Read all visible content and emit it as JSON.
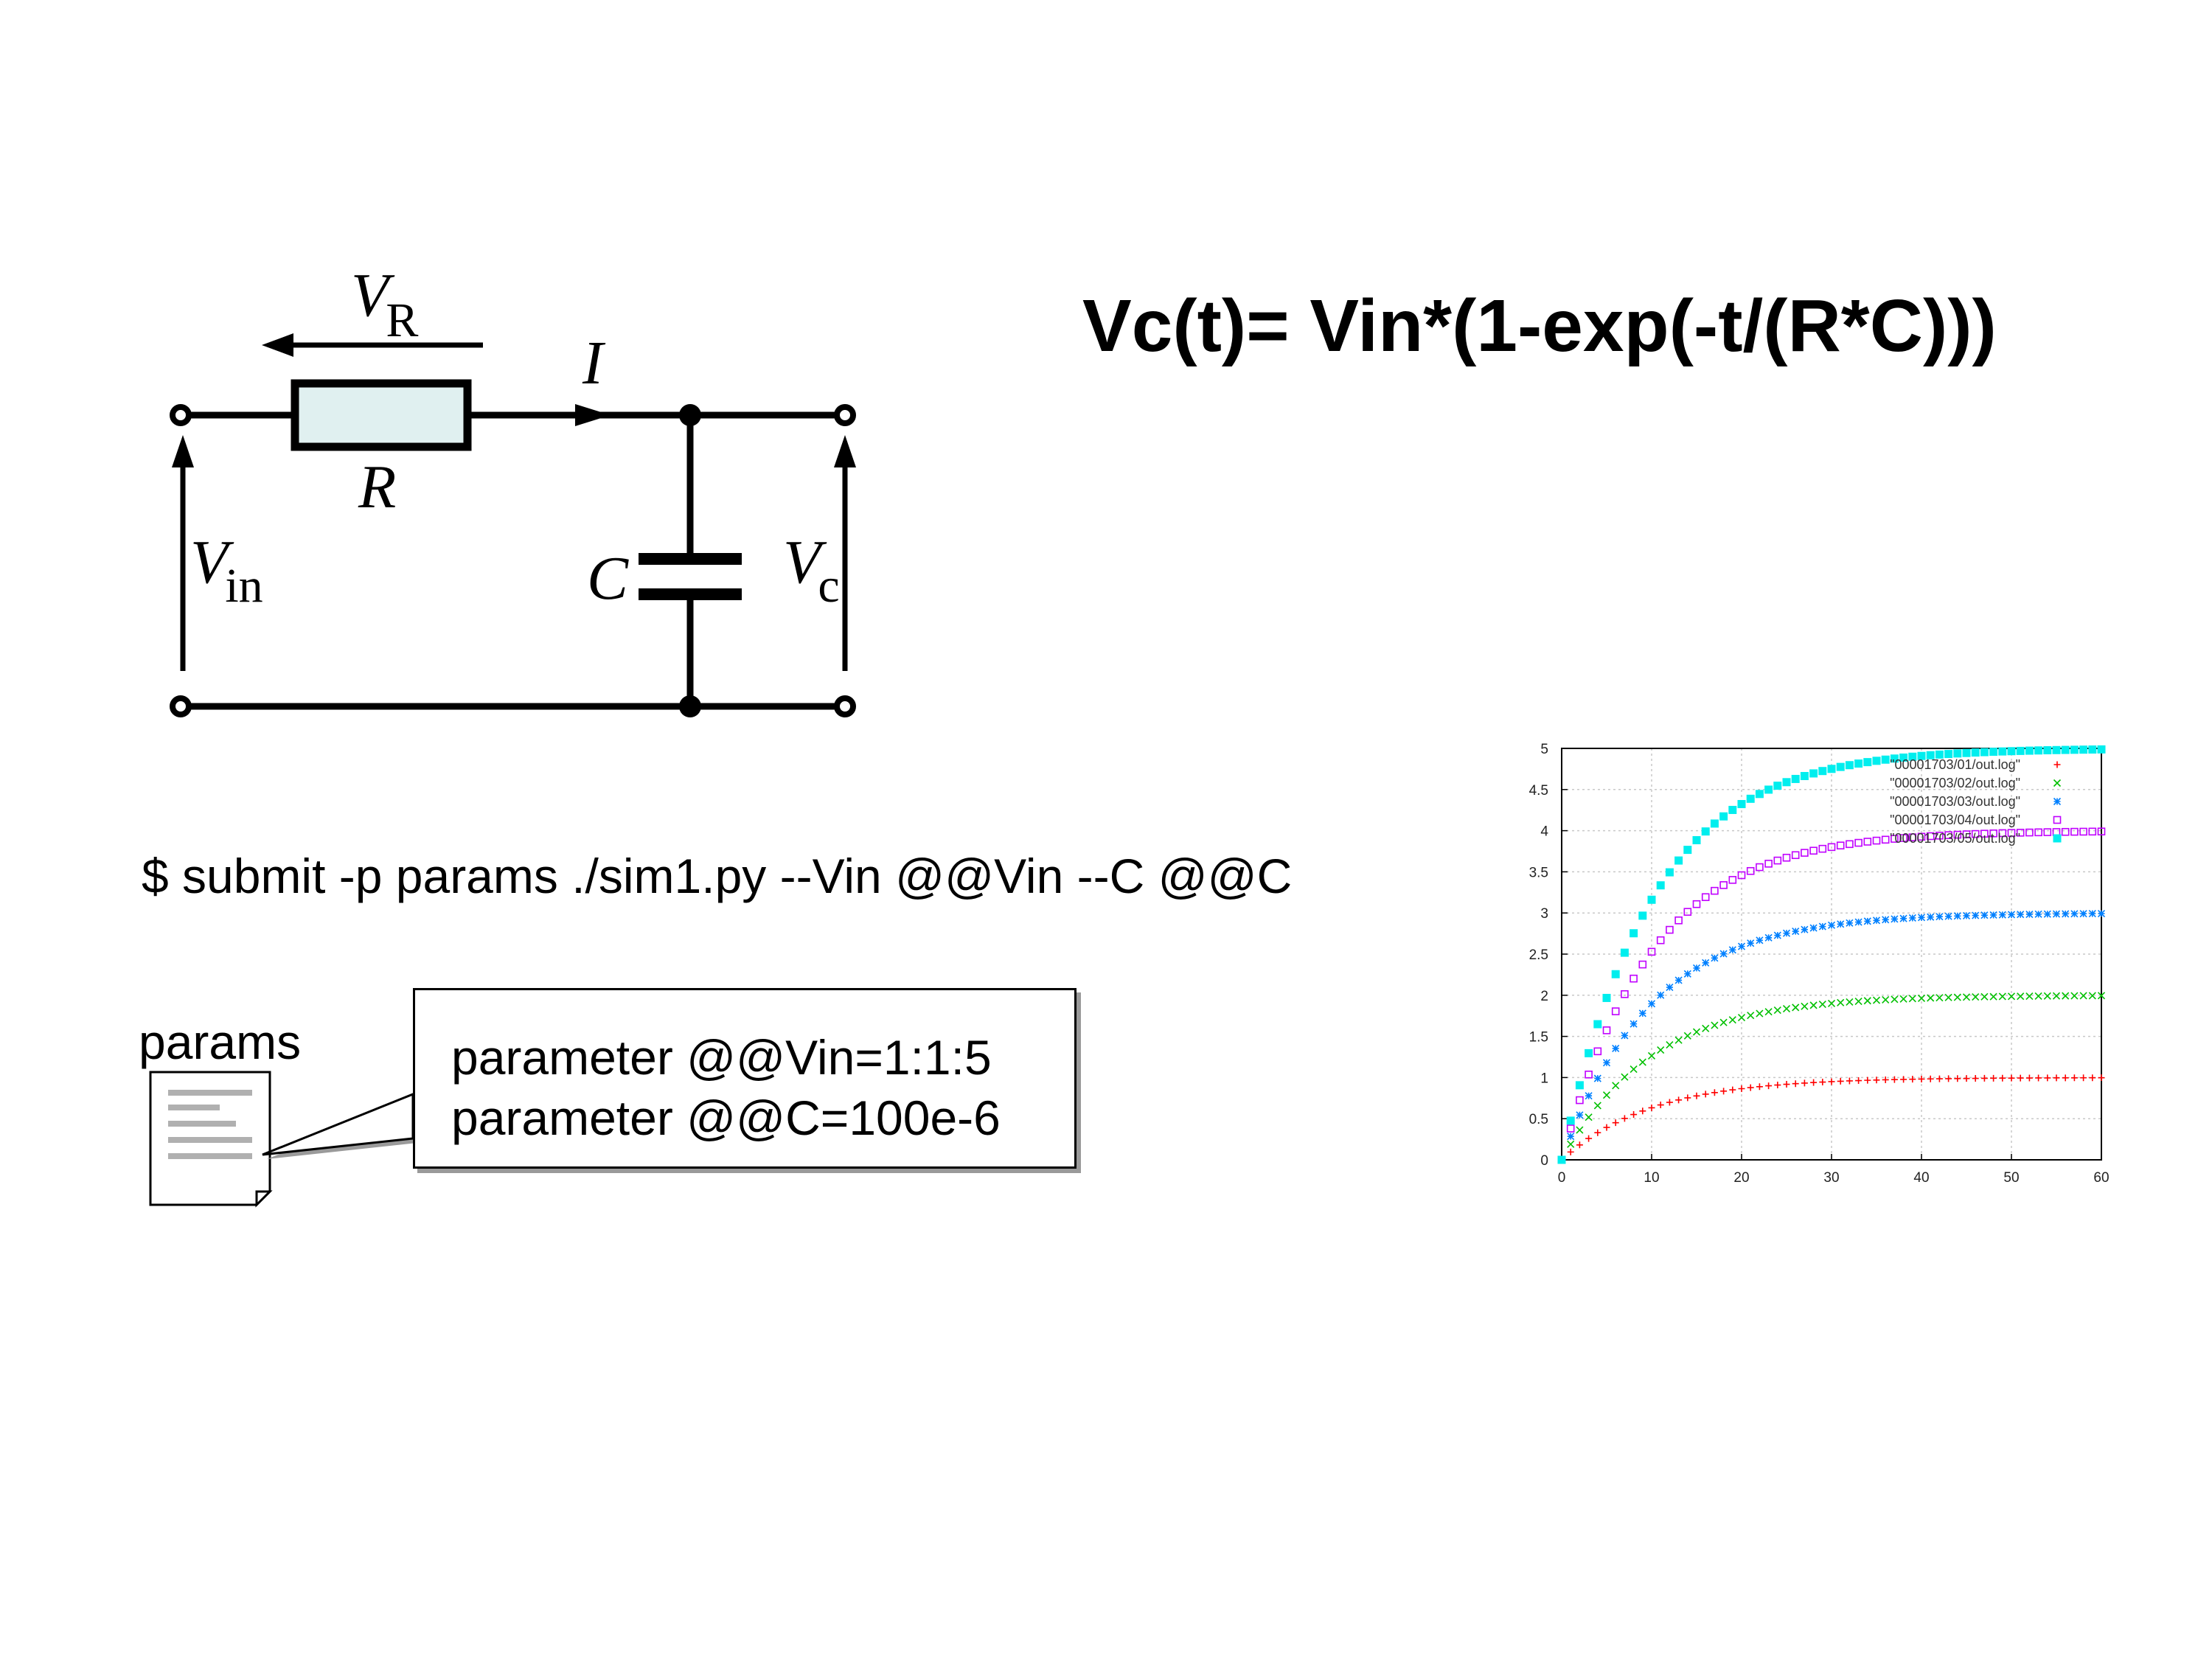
{
  "circuit": {
    "labels": {
      "vr_main": "V",
      "vr_sub": "R",
      "current": "I",
      "resistor": "R",
      "vin_main": "V",
      "vin_sub": "in",
      "capacitor": "C",
      "vc_main": "V",
      "vc_sub": "c"
    }
  },
  "formula": "Vc(t)= Vin*(1-exp(-t/(R*C)))",
  "command": "$ submit -p params ./sim1.py --Vin @@Vin --C @@C",
  "params_label": "params",
  "callout": {
    "lines": [
      "parameter @@Vin=1:1:5",
      "parameter @@C=100e-6"
    ]
  },
  "chart_data": {
    "type": "scatter",
    "x_ticks": [
      "0",
      "10",
      "20",
      "30",
      "40",
      "50",
      "60"
    ],
    "y_ticks": [
      "0",
      "0.5",
      "1",
      "1.5",
      "2",
      "2.5",
      "3",
      "3.5",
      "4",
      "4.5",
      "5"
    ],
    "xlim": [
      0,
      60
    ],
    "ylim": [
      0,
      5
    ],
    "grid": true,
    "legend_position": "top-right",
    "time_constant": 10,
    "x_step": 1,
    "series": [
      {
        "name": "\"00001703/01/out.log\"",
        "asymptote": 1,
        "color": "#ff0000",
        "marker": "plus"
      },
      {
        "name": "\"00001703/02/out.log\"",
        "asymptote": 2,
        "color": "#00c000",
        "marker": "cross"
      },
      {
        "name": "\"00001703/03/out.log\"",
        "asymptote": 3,
        "color": "#0080ff",
        "marker": "star"
      },
      {
        "name": "\"00001703/04/out.log\"",
        "asymptote": 4,
        "color": "#c000ff",
        "marker": "open-square"
      },
      {
        "name": "\"00001703/05/out.log\"",
        "asymptote": 5,
        "color": "#00eeee",
        "marker": "filled-square"
      }
    ]
  }
}
